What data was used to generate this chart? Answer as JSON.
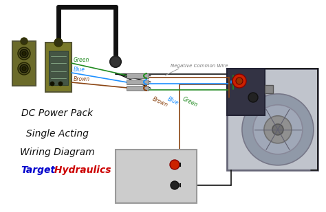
{
  "background_color": "#ffffff",
  "title_lines": [
    "DC Power Pack",
    "Single Acting",
    "Wiring Diagram"
  ],
  "brand_target": "Target",
  "brand_hydraulics": " Hydraulics",
  "brand_target_color": "#0000cc",
  "brand_hydraulics_color": "#cc0000",
  "wire_colors": {
    "green": "#228B22",
    "blue": "#1E90FF",
    "brown": "#8B4513",
    "black": "#111111",
    "red": "#cc0000",
    "gray": "#888888",
    "darkgray": "#555555"
  },
  "label_color": "#666666",
  "connector_label_font": 5.5,
  "title_font": 10,
  "remote_box1_color": "#6B6B2A",
  "remote_box2_color": "#7A7A2A",
  "motor_body_color": "#b8bec8",
  "motor_disk_color": "#9099a8",
  "battery_color": "#cccccc",
  "valve_color": "#333344"
}
